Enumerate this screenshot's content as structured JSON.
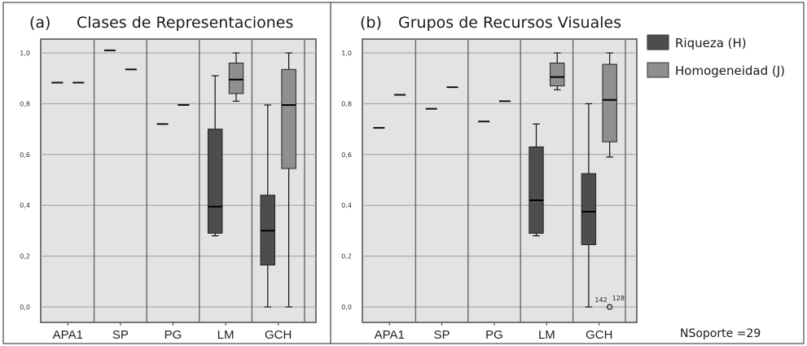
{
  "chart_data": [
    {
      "type": "box",
      "panel_label": "(a)",
      "title": "Clases de Representaciones",
      "categories": [
        "APA1",
        "SP",
        "PG",
        "LM",
        "GCH"
      ],
      "ylim": [
        0,
        1
      ],
      "yticks": [
        "0,0",
        "0,2",
        "0,4",
        "0,6",
        "0,8",
        "1,0"
      ],
      "grid": true,
      "series": [
        {
          "name": "Riqueza (H)",
          "color": "#4d4d4d",
          "boxes": [
            {
              "min": 0.883,
              "q1": 0.883,
              "median": 0.883,
              "q3": 0.883,
              "max": 0.883
            },
            {
              "min": 1.01,
              "q1": 1.01,
              "median": 1.01,
              "q3": 1.01,
              "max": 1.01
            },
            {
              "min": 0.72,
              "q1": 0.72,
              "median": 0.72,
              "q3": 0.72,
              "max": 0.72
            },
            {
              "min": 0.28,
              "q1": 0.29,
              "median": 0.395,
              "q3": 0.7,
              "max": 0.91
            },
            {
              "min": 0.0,
              "q1": 0.165,
              "median": 0.3,
              "q3": 0.44,
              "max": 0.795
            }
          ]
        },
        {
          "name": "Homogeneidad (J)",
          "color": "#8f8f8f",
          "boxes": [
            {
              "min": 0.883,
              "q1": 0.883,
              "median": 0.883,
              "q3": 0.883,
              "max": 0.883
            },
            {
              "min": 0.935,
              "q1": 0.935,
              "median": 0.935,
              "q3": 0.935,
              "max": 0.935
            },
            {
              "min": 0.795,
              "q1": 0.795,
              "median": 0.795,
              "q3": 0.795,
              "max": 0.795
            },
            {
              "min": 0.81,
              "q1": 0.84,
              "median": 0.895,
              "q3": 0.96,
              "max": 1.0
            },
            {
              "min": 0.0,
              "q1": 0.545,
              "median": 0.795,
              "q3": 0.935,
              "max": 1.0
            }
          ]
        }
      ]
    },
    {
      "type": "box",
      "panel_label": "(b)",
      "title": "Grupos de Recursos Visuales",
      "categories": [
        "APA1",
        "SP",
        "PG",
        "LM",
        "GCH"
      ],
      "ylim": [
        0,
        1
      ],
      "yticks": [
        "0,0",
        "0,2",
        "0,4",
        "0,6",
        "0,8",
        "1,0"
      ],
      "grid": true,
      "series": [
        {
          "name": "Riqueza (H)",
          "color": "#4d4d4d",
          "boxes": [
            {
              "min": 0.705,
              "q1": 0.705,
              "median": 0.705,
              "q3": 0.705,
              "max": 0.705
            },
            {
              "min": 0.78,
              "q1": 0.78,
              "median": 0.78,
              "q3": 0.78,
              "max": 0.78
            },
            {
              "min": 0.73,
              "q1": 0.73,
              "median": 0.73,
              "q3": 0.73,
              "max": 0.73
            },
            {
              "min": 0.28,
              "q1": 0.29,
              "median": 0.42,
              "q3": 0.63,
              "max": 0.72
            },
            {
              "min": 0.0,
              "q1": 0.245,
              "median": 0.375,
              "q3": 0.525,
              "max": 0.8
            }
          ]
        },
        {
          "name": "Homogeneidad (J)",
          "color": "#8f8f8f",
          "boxes": [
            {
              "min": 0.835,
              "q1": 0.835,
              "median": 0.835,
              "q3": 0.835,
              "max": 0.835
            },
            {
              "min": 0.865,
              "q1": 0.865,
              "median": 0.865,
              "q3": 0.865,
              "max": 0.865
            },
            {
              "min": 0.81,
              "q1": 0.81,
              "median": 0.81,
              "q3": 0.81,
              "max": 0.81
            },
            {
              "min": 0.855,
              "q1": 0.87,
              "median": 0.905,
              "q3": 0.96,
              "max": 1.0
            },
            {
              "min": 0.59,
              "q1": 0.65,
              "median": 0.815,
              "q3": 0.955,
              "max": 1.0
            }
          ]
        }
      ],
      "outliers": [
        {
          "series": "Homogeneidad (J)",
          "category": "GCH",
          "value": 0.0,
          "labels": [
            "142",
            "128"
          ]
        }
      ]
    }
  ],
  "legend": {
    "position": "right",
    "items": [
      {
        "label": "Riqueza (H)",
        "color": "#4d4d4d"
      },
      {
        "label": "Homogeneidad (J)",
        "color": "#8f8f8f"
      }
    ]
  },
  "note": "NSoporte =29"
}
